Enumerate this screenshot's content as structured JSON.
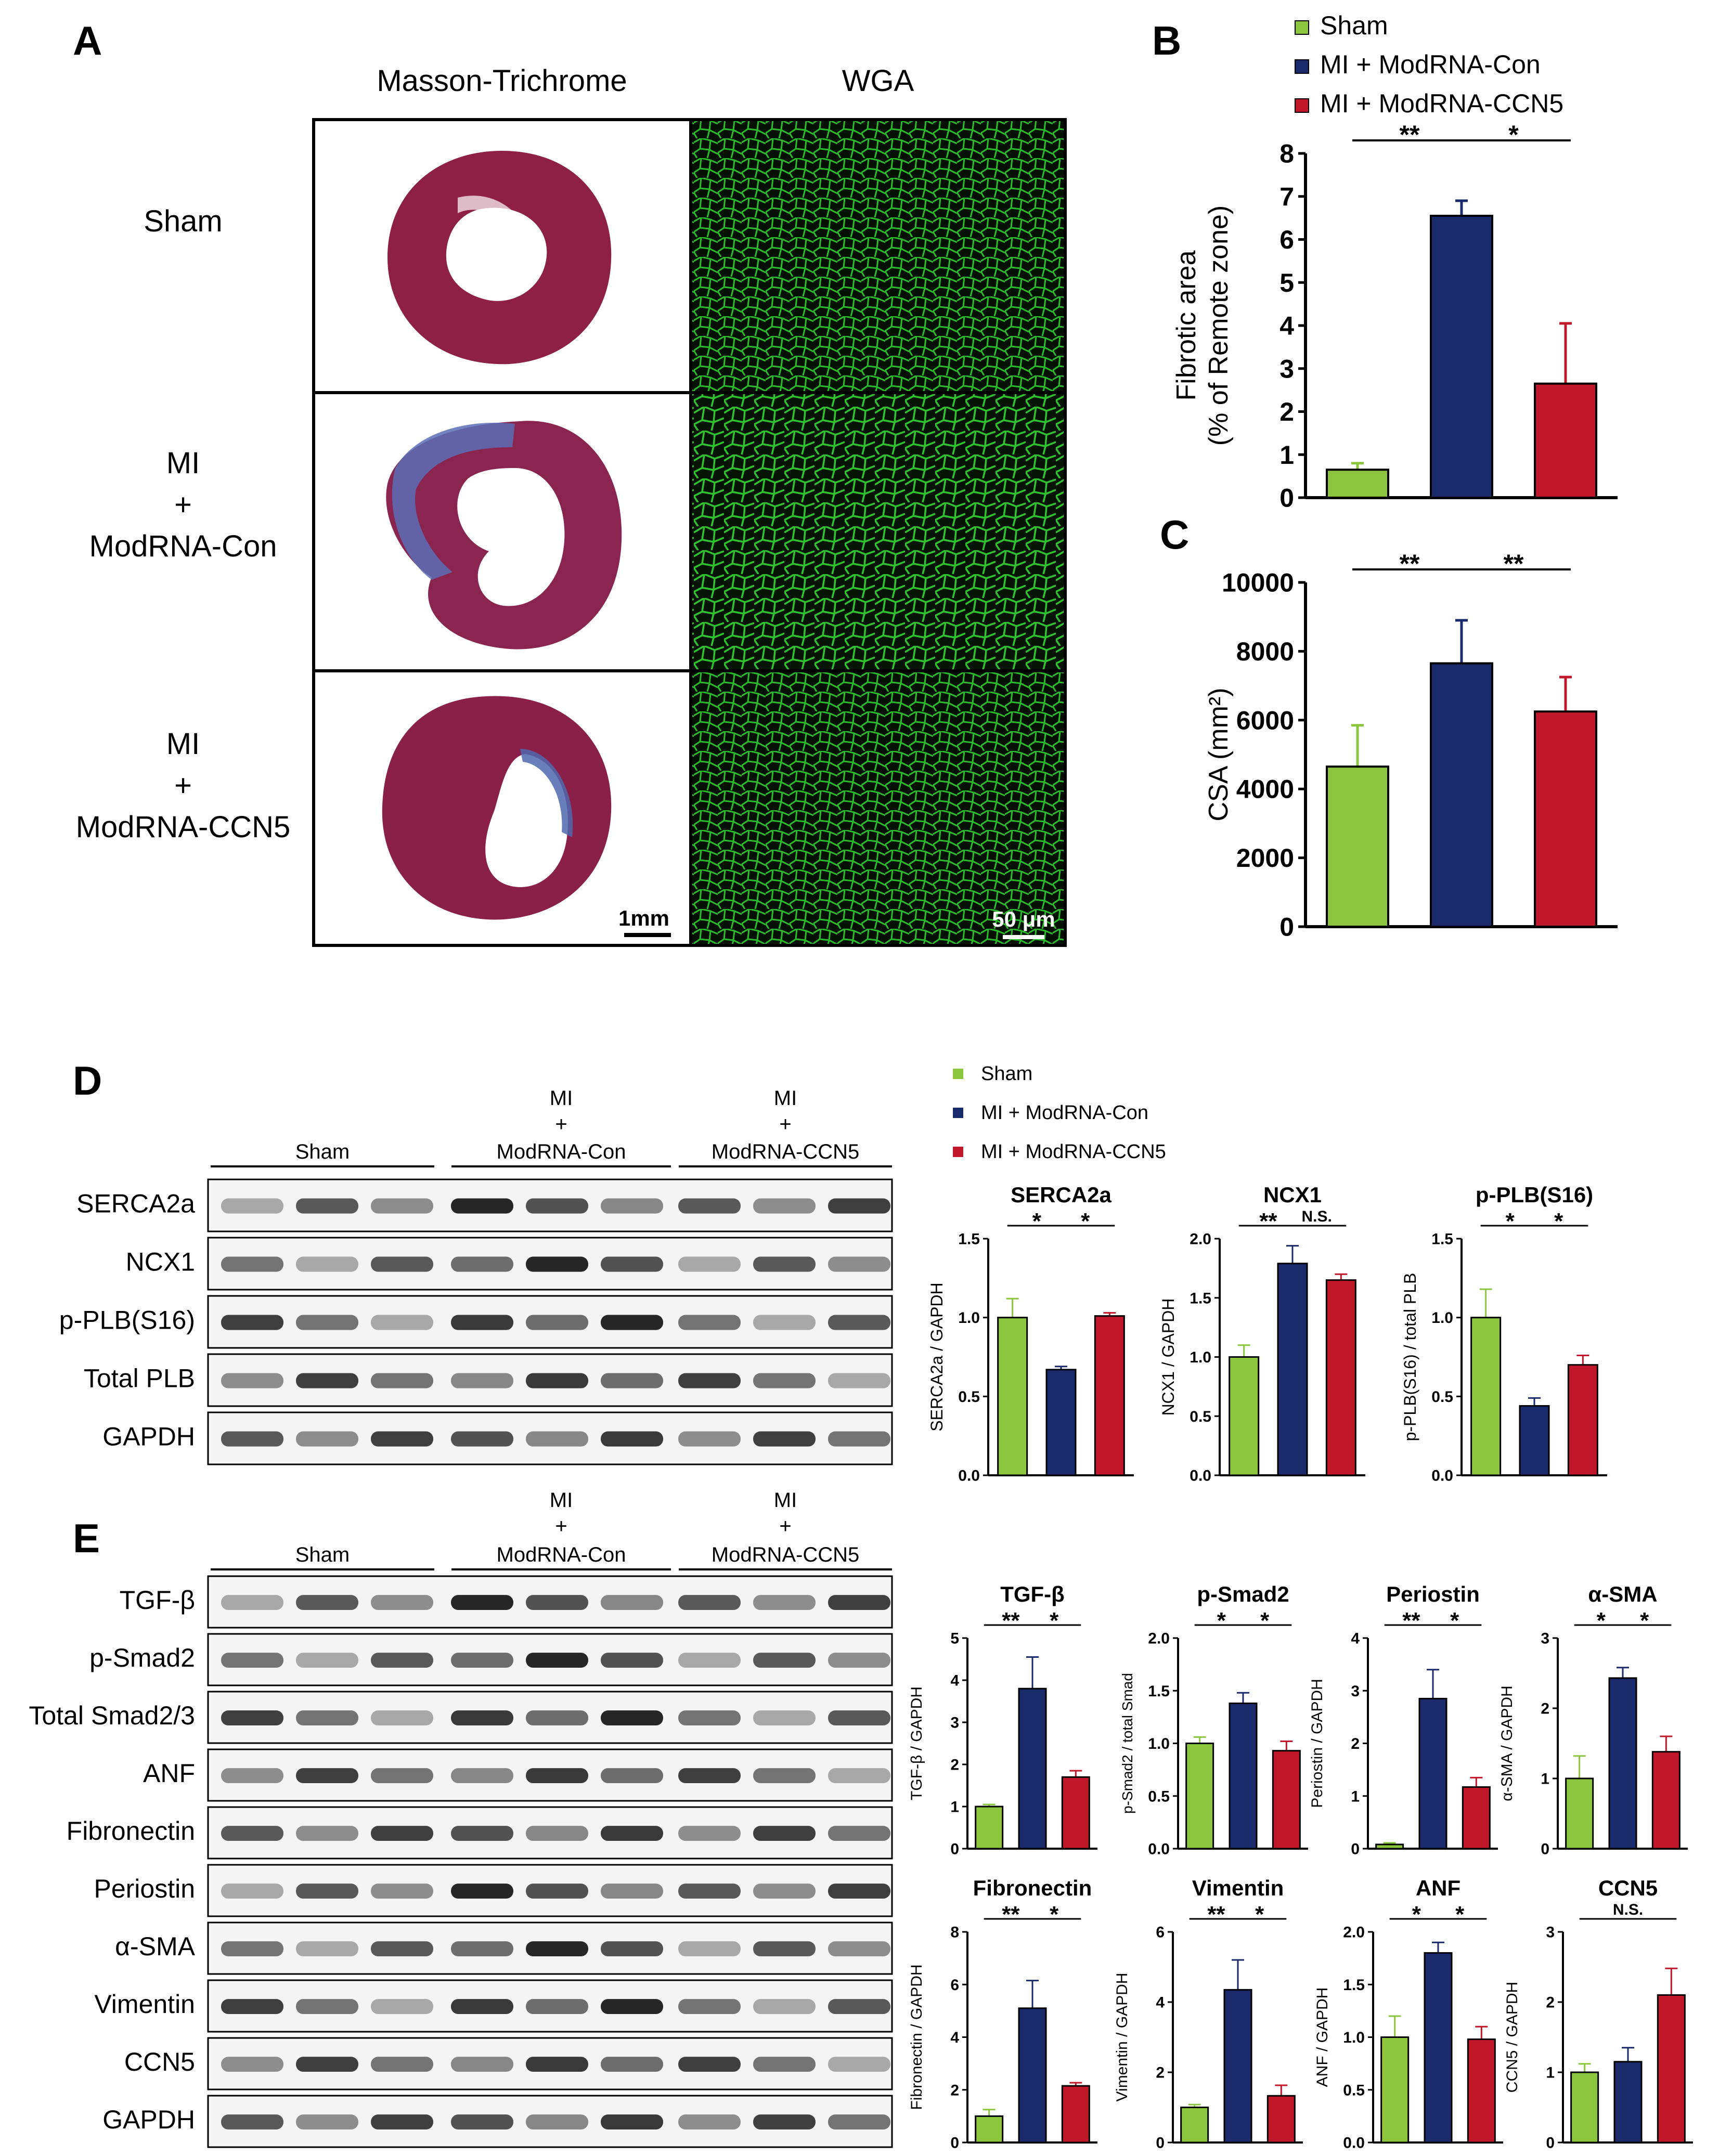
{
  "colors": {
    "sham": "#8cc63f",
    "con": "#1b2a6b",
    "ccn5": "#c0182a",
    "axis": "#000000",
    "wga": "#2ed12e"
  },
  "panels": {
    "A": "A",
    "B": "B",
    "C": "C",
    "D": "D",
    "E": "E"
  },
  "panel_a": {
    "col_headers": [
      "Masson-Trichrome",
      "WGA"
    ],
    "rows": [
      {
        "lines": [
          "Sham"
        ]
      },
      {
        "lines": [
          "MI",
          "+",
          "ModRNA-Con"
        ]
      },
      {
        "lines": [
          "MI",
          "+",
          "ModRNA-CCN5"
        ]
      }
    ],
    "scalebar_mt": "1mm",
    "scalebar_wga": "50 μm"
  },
  "legend_top": [
    "Sham",
    "MI + ModRNA-Con",
    "MI + ModRNA-CCN5"
  ],
  "legend_mid": [
    "Sham",
    "MI + ModRNA-Con",
    "MI + ModRNA-CCN5"
  ],
  "blots_d": {
    "groups": [
      {
        "top": [],
        "bottom": "Sham"
      },
      {
        "top": [
          "MI",
          "+"
        ],
        "bottom": "ModRNA-Con"
      },
      {
        "top": [
          "MI",
          "+"
        ],
        "bottom": "ModRNA-CCN5"
      }
    ],
    "rows": [
      "SERCA2a",
      "NCX1",
      "p-PLB(S16)",
      "Total PLB",
      "GAPDH"
    ]
  },
  "blots_e": {
    "groups": [
      {
        "top": [],
        "bottom": "Sham"
      },
      {
        "top": [
          "MI",
          "+"
        ],
        "bottom": "ModRNA-Con"
      },
      {
        "top": [
          "MI",
          "+"
        ],
        "bottom": "ModRNA-CCN5"
      }
    ],
    "rows": [
      "TGF-β",
      "p-Smad2",
      "Total Smad2/3",
      "ANF",
      "Fibronectin",
      "Periostin",
      "α-SMA",
      "Vimentin",
      "CCN5",
      "GAPDH"
    ]
  },
  "chart_data": [
    {
      "id": "B",
      "type": "bar",
      "title": "",
      "ylabel": [
        "Fibrotic area",
        "(% of Remote zone)"
      ],
      "categories": [
        "Sham",
        "MI + ModRNA-Con",
        "MI + ModRNA-CCN5"
      ],
      "values": [
        0.65,
        6.55,
        2.65
      ],
      "errors": [
        0.15,
        0.35,
        1.4
      ],
      "ylim": [
        0,
        8
      ],
      "yticks": [
        "0",
        "1",
        "2",
        "3",
        "4",
        "5",
        "6",
        "7",
        "8"
      ],
      "sig": [
        {
          "label": "**",
          "from": 0,
          "to": 1
        },
        {
          "label": "*",
          "from": 1,
          "to": 2
        }
      ]
    },
    {
      "id": "C",
      "type": "bar",
      "title": "",
      "ylabel": [
        "CSA (mm²)"
      ],
      "categories": [
        "Sham",
        "MI + ModRNA-Con",
        "MI + ModRNA-CCN5"
      ],
      "values": [
        4650,
        7650,
        6250
      ],
      "errors": [
        1200,
        1250,
        1000
      ],
      "ylim": [
        0,
        10000
      ],
      "yticks": [
        "0",
        "2000",
        "4000",
        "6000",
        "8000",
        "10000"
      ],
      "sig": [
        {
          "label": "**",
          "from": 0,
          "to": 1
        },
        {
          "label": "**",
          "from": 1,
          "to": 2
        }
      ]
    },
    {
      "id": "D1",
      "type": "bar",
      "title": "SERCA2a",
      "ylabel": [
        "SERCA2a / GAPDH"
      ],
      "categories": [
        "Sham",
        "MI + ModRNA-Con",
        "MI + ModRNA-CCN5"
      ],
      "values": [
        1.0,
        0.67,
        1.01
      ],
      "errors": [
        0.12,
        0.02,
        0.02
      ],
      "ylim": [
        0,
        1.5
      ],
      "yticks": [
        "0.0",
        "0.5",
        "1.0",
        "1.5"
      ],
      "sig": [
        {
          "label": "*",
          "from": 0,
          "to": 1
        },
        {
          "label": "*",
          "from": 1,
          "to": 2
        }
      ]
    },
    {
      "id": "D2",
      "type": "bar",
      "title": "NCX1",
      "ylabel": [
        "NCX1 / GAPDH"
      ],
      "categories": [
        "Sham",
        "MI + ModRNA-Con",
        "MI + ModRNA-CCN5"
      ],
      "values": [
        1.0,
        1.79,
        1.65
      ],
      "errors": [
        0.1,
        0.15,
        0.05
      ],
      "ylim": [
        0,
        2.0
      ],
      "yticks": [
        "0.0",
        "0.5",
        "1.0",
        "1.5",
        "2.0"
      ],
      "sig": [
        {
          "label": "**",
          "from": 0,
          "to": 1
        },
        {
          "label": "N.S.",
          "from": 1,
          "to": 2
        }
      ]
    },
    {
      "id": "D3",
      "type": "bar",
      "title": "p-PLB(S16)",
      "ylabel": [
        "p-PLB(S16) / total PLB"
      ],
      "categories": [
        "Sham",
        "MI + ModRNA-Con",
        "MI + ModRNA-CCN5"
      ],
      "values": [
        1.0,
        0.44,
        0.7
      ],
      "errors": [
        0.18,
        0.05,
        0.06
      ],
      "ylim": [
        0,
        1.5
      ],
      "yticks": [
        "0.0",
        "0.5",
        "1.0",
        "1.5"
      ],
      "sig": [
        {
          "label": "*",
          "from": 0,
          "to": 1
        },
        {
          "label": "*",
          "from": 1,
          "to": 2
        }
      ]
    },
    {
      "id": "E1",
      "type": "bar",
      "title": "TGF-β",
      "ylabel": [
        "TGF-β / GAPDH"
      ],
      "categories": [
        "Sham",
        "MI + ModRNA-Con",
        "MI + ModRNA-CCN5"
      ],
      "values": [
        1.0,
        3.8,
        1.7
      ],
      "errors": [
        0.05,
        0.75,
        0.15
      ],
      "ylim": [
        0,
        5
      ],
      "yticks": [
        "0",
        "1",
        "2",
        "3",
        "4",
        "5"
      ],
      "sig": [
        {
          "label": "**",
          "from": 0,
          "to": 1
        },
        {
          "label": "*",
          "from": 1,
          "to": 2
        }
      ]
    },
    {
      "id": "E2",
      "type": "bar",
      "title": "p-Smad2",
      "ylabel": [
        "p-Smad2 / total Smad"
      ],
      "categories": [
        "Sham",
        "MI + ModRNA-Con",
        "MI + ModRNA-CCN5"
      ],
      "values": [
        1.0,
        1.38,
        0.93
      ],
      "errors": [
        0.06,
        0.1,
        0.09
      ],
      "ylim": [
        0,
        2.0
      ],
      "yticks": [
        "0.0",
        "0.5",
        "1.0",
        "1.5",
        "2.0"
      ],
      "sig": [
        {
          "label": "*",
          "from": 0,
          "to": 1
        },
        {
          "label": "*",
          "from": 1,
          "to": 2
        }
      ]
    },
    {
      "id": "E3",
      "type": "bar",
      "title": "Periostin",
      "ylabel": [
        "Periostin / GAPDH"
      ],
      "categories": [
        "Sham",
        "MI + ModRNA-Con",
        "MI + ModRNA-CCN5"
      ],
      "values": [
        0.08,
        2.85,
        1.17
      ],
      "errors": [
        0.03,
        0.55,
        0.18
      ],
      "ylim": [
        0,
        4
      ],
      "yticks": [
        "0",
        "1",
        "2",
        "3",
        "4"
      ],
      "sig": [
        {
          "label": "**",
          "from": 0,
          "to": 1
        },
        {
          "label": "*",
          "from": 1,
          "to": 2
        }
      ]
    },
    {
      "id": "E4",
      "type": "bar",
      "title": "α-SMA",
      "ylabel": [
        "α-SMA / GAPDH"
      ],
      "categories": [
        "Sham",
        "MI + ModRNA-Con",
        "MI + ModRNA-CCN5"
      ],
      "values": [
        1.0,
        2.43,
        1.38
      ],
      "errors": [
        0.32,
        0.15,
        0.22
      ],
      "ylim": [
        0,
        3
      ],
      "yticks": [
        "0",
        "1",
        "2",
        "3"
      ],
      "sig": [
        {
          "label": "*",
          "from": 0,
          "to": 1
        },
        {
          "label": "*",
          "from": 1,
          "to": 2
        }
      ]
    },
    {
      "id": "E5",
      "type": "bar",
      "title": "Fibronectin",
      "ylabel": [
        "Fibronectin / GAPDH"
      ],
      "categories": [
        "Sham",
        "MI + ModRNA-Con",
        "MI + ModRNA-CCN5"
      ],
      "values": [
        1.0,
        5.1,
        2.15
      ],
      "errors": [
        0.25,
        1.05,
        0.12
      ],
      "ylim": [
        0,
        8
      ],
      "yticks": [
        "0",
        "2",
        "4",
        "6",
        "8"
      ],
      "sig": [
        {
          "label": "**",
          "from": 0,
          "to": 1
        },
        {
          "label": "*",
          "from": 1,
          "to": 2
        }
      ]
    },
    {
      "id": "E6",
      "type": "bar",
      "title": "Vimentin",
      "ylabel": [
        "Vimentin / GAPDH"
      ],
      "categories": [
        "Sham",
        "MI + ModRNA-Con",
        "MI + ModRNA-CCN5"
      ],
      "values": [
        1.0,
        4.35,
        1.33
      ],
      "errors": [
        0.08,
        0.85,
        0.3
      ],
      "ylim": [
        0,
        6
      ],
      "yticks": [
        "0",
        "2",
        "4",
        "6"
      ],
      "sig": [
        {
          "label": "**",
          "from": 0,
          "to": 1
        },
        {
          "label": "*",
          "from": 1,
          "to": 2
        }
      ]
    },
    {
      "id": "E7",
      "type": "bar",
      "title": "ANF",
      "ylabel": [
        "ANF / GAPDH"
      ],
      "categories": [
        "Sham",
        "MI + ModRNA-Con",
        "MI + ModRNA-CCN5"
      ],
      "values": [
        1.0,
        1.8,
        0.98
      ],
      "errors": [
        0.2,
        0.1,
        0.12
      ],
      "ylim": [
        0,
        2.0
      ],
      "yticks": [
        "0.0",
        "0.5",
        "1.0",
        "1.5",
        "2.0"
      ],
      "sig": [
        {
          "label": "*",
          "from": 0,
          "to": 1
        },
        {
          "label": "*",
          "from": 1,
          "to": 2
        }
      ]
    },
    {
      "id": "E8",
      "type": "bar",
      "title": "CCN5",
      "ylabel": [
        "CCN5 / GAPDH"
      ],
      "categories": [
        "Sham",
        "MI + ModRNA-Con",
        "MI + ModRNA-CCN5"
      ],
      "values": [
        1.0,
        1.15,
        2.1
      ],
      "errors": [
        0.12,
        0.2,
        0.38
      ],
      "ylim": [
        0,
        3
      ],
      "yticks": [
        "0",
        "1",
        "2",
        "3"
      ],
      "sig": [
        {
          "label": "N.S.",
          "from": 0,
          "to": 2
        }
      ]
    }
  ]
}
